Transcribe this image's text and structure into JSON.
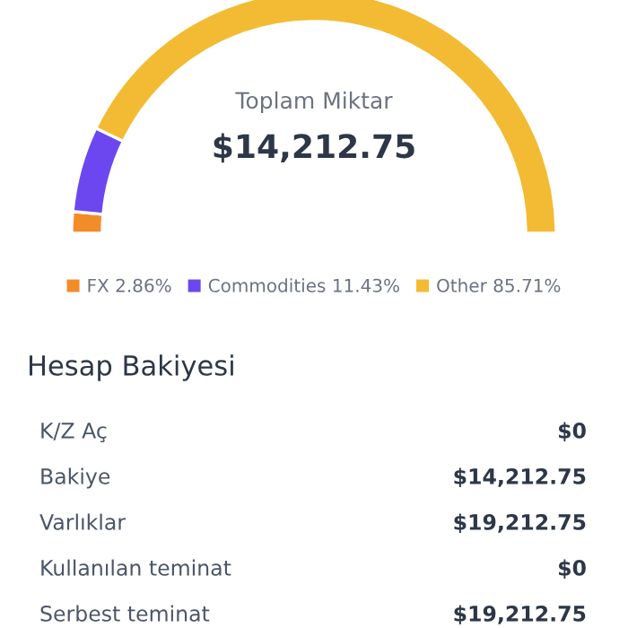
{
  "chart_data": [
    {
      "type": "donut",
      "title": "Toplam Miktar",
      "subtitle": "$14,212.75",
      "categories": [
        "FX",
        "Commodities",
        "Other"
      ],
      "values": [
        2.86,
        11.43,
        85.71
      ],
      "value_labels": [
        "2.86%",
        "11.43%",
        "85.71%"
      ],
      "colors": [
        "#f28c28",
        "#6c47f0",
        "#f3bb33"
      ],
      "legend": "bottom"
    },
    {
      "type": "other",
      "title": "Hesap Bakiyesi",
      "annotations": [
        "K/Z Aç",
        "$0",
        "Bakiye",
        "$14,212.75",
        "Varlıklar",
        "$19,212.75",
        "Kullanılan teminat",
        "$0",
        "Serbest teminat",
        "$19,212.75"
      ]
    }
  ]
}
